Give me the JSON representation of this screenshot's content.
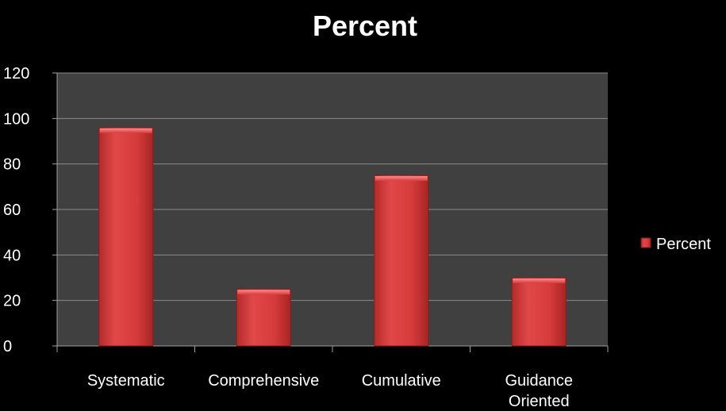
{
  "chart_data": {
    "type": "bar",
    "title": "Percent",
    "xlabel": "",
    "ylabel": "",
    "categories": [
      [
        "Systematic"
      ],
      [
        "Comprehensive"
      ],
      [
        "Cumulative"
      ],
      [
        "Guidance",
        "Oriented"
      ]
    ],
    "series": [
      {
        "name": "Percent",
        "values": [
          96,
          25,
          75,
          30
        ],
        "color": "#d63b3b"
      }
    ],
    "ylim": [
      0,
      120
    ],
    "yticks": [
      "0",
      "20",
      "40",
      "60",
      "80",
      "100",
      "120"
    ],
    "grid": true,
    "legend_position": "right",
    "colors": {
      "background": "#000000",
      "plot_area": "#404040",
      "grid": "#8a8a8a",
      "axis": "#a0a0a0",
      "text": "#ffffff",
      "bar": "#d63b3b"
    }
  }
}
